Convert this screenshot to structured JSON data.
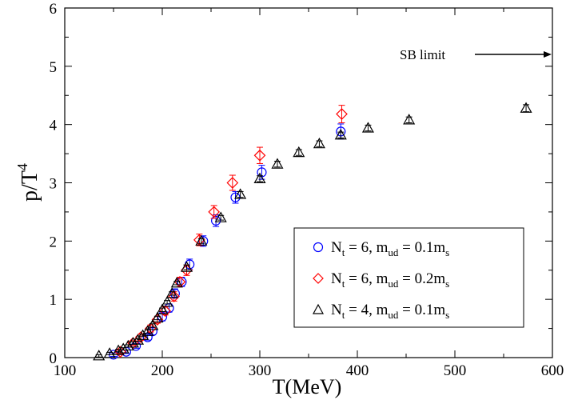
{
  "chart_data": {
    "type": "scatter",
    "xlabel": "T(MeV)",
    "ylabel_main": "p/T",
    "ylabel_sup": "4",
    "xlim": [
      100,
      600
    ],
    "ylim": [
      0,
      6
    ],
    "xticks": [
      100,
      200,
      300,
      400,
      500,
      600
    ],
    "yticks": [
      0,
      1,
      2,
      3,
      4,
      5,
      6
    ],
    "grid": false,
    "legend_position": "bottom-right",
    "annotation": {
      "text": "SB limit",
      "y": 5.2
    },
    "series": [
      {
        "marker": "circle",
        "color": "#0000ff",
        "legend": {
          "main": "N",
          "sub1": "t",
          "mid": " = 6, m",
          "sub2": "ud",
          "end": " = 0.1m",
          "sub3": "s"
        },
        "points": [
          {
            "x": 150,
            "y": 0.05,
            "err": 0.03
          },
          {
            "x": 163,
            "y": 0.1,
            "err": 0.03
          },
          {
            "x": 173,
            "y": 0.2,
            "err": 0.04
          },
          {
            "x": 185,
            "y": 0.35,
            "err": 0.05
          },
          {
            "x": 190,
            "y": 0.45,
            "err": 0.06
          },
          {
            "x": 200,
            "y": 0.7,
            "err": 0.07
          },
          {
            "x": 207,
            "y": 0.85,
            "err": 0.07
          },
          {
            "x": 213,
            "y": 1.1,
            "err": 0.08
          },
          {
            "x": 220,
            "y": 1.3,
            "err": 0.08
          },
          {
            "x": 228,
            "y": 1.6,
            "err": 0.09
          },
          {
            "x": 242,
            "y": 2.0,
            "err": 0.09
          },
          {
            "x": 255,
            "y": 2.35,
            "err": 0.1
          },
          {
            "x": 275,
            "y": 2.75,
            "err": 0.1
          },
          {
            "x": 302,
            "y": 3.18,
            "err": 0.12
          },
          {
            "x": 383,
            "y": 3.88,
            "err": 0.13
          }
        ]
      },
      {
        "marker": "diamond",
        "color": "#ff0000",
        "legend": {
          "main": "N",
          "sub1": "t",
          "mid": " = 6, m",
          "sub2": "ud",
          "end": " = 0.2m",
          "sub3": "s"
        },
        "points": [
          {
            "x": 157,
            "y": 0.1,
            "err": 0.03
          },
          {
            "x": 170,
            "y": 0.25,
            "err": 0.04
          },
          {
            "x": 178,
            "y": 0.35,
            "err": 0.05
          },
          {
            "x": 188,
            "y": 0.5,
            "err": 0.06
          },
          {
            "x": 195,
            "y": 0.65,
            "err": 0.06
          },
          {
            "x": 203,
            "y": 0.8,
            "err": 0.07
          },
          {
            "x": 212,
            "y": 1.05,
            "err": 0.08
          },
          {
            "x": 218,
            "y": 1.3,
            "err": 0.08
          },
          {
            "x": 225,
            "y": 1.5,
            "err": 0.09
          },
          {
            "x": 238,
            "y": 2.02,
            "err": 0.1
          },
          {
            "x": 253,
            "y": 2.5,
            "err": 0.11
          },
          {
            "x": 272,
            "y": 3.0,
            "err": 0.13
          },
          {
            "x": 300,
            "y": 3.47,
            "err": 0.14
          },
          {
            "x": 384,
            "y": 4.18,
            "err": 0.15
          }
        ]
      },
      {
        "marker": "triangle",
        "color": "#000000",
        "legend": {
          "main": "N",
          "sub1": "t",
          "mid": " = 4, m",
          "sub2": "ud",
          "end": " = 0.1m",
          "sub3": "s"
        },
        "points": [
          {
            "x": 135,
            "y": 0.03,
            "err": 0.02
          },
          {
            "x": 146,
            "y": 0.07,
            "err": 0.02
          },
          {
            "x": 155,
            "y": 0.12,
            "err": 0.02
          },
          {
            "x": 160,
            "y": 0.15,
            "err": 0.02
          },
          {
            "x": 165,
            "y": 0.2,
            "err": 0.02
          },
          {
            "x": 170,
            "y": 0.25,
            "err": 0.02
          },
          {
            "x": 175,
            "y": 0.3,
            "err": 0.02
          },
          {
            "x": 180,
            "y": 0.38,
            "err": 0.02
          },
          {
            "x": 185,
            "y": 0.45,
            "err": 0.03
          },
          {
            "x": 190,
            "y": 0.55,
            "err": 0.03
          },
          {
            "x": 195,
            "y": 0.68,
            "err": 0.03
          },
          {
            "x": 200,
            "y": 0.82,
            "err": 0.03
          },
          {
            "x": 205,
            "y": 0.95,
            "err": 0.03
          },
          {
            "x": 210,
            "y": 1.1,
            "err": 0.03
          },
          {
            "x": 215,
            "y": 1.28,
            "err": 0.03
          },
          {
            "x": 225,
            "y": 1.55,
            "err": 0.04
          },
          {
            "x": 240,
            "y": 2.0,
            "err": 0.04
          },
          {
            "x": 260,
            "y": 2.4,
            "err": 0.04
          },
          {
            "x": 280,
            "y": 2.8,
            "err": 0.05
          },
          {
            "x": 300,
            "y": 3.07,
            "err": 0.05
          },
          {
            "x": 318,
            "y": 3.32,
            "err": 0.05
          },
          {
            "x": 340,
            "y": 3.52,
            "err": 0.05
          },
          {
            "x": 361,
            "y": 3.67,
            "err": 0.05
          },
          {
            "x": 383,
            "y": 3.82,
            "err": 0.05
          },
          {
            "x": 411,
            "y": 3.94,
            "err": 0.05
          },
          {
            "x": 453,
            "y": 4.08,
            "err": 0.05
          },
          {
            "x": 573,
            "y": 4.28,
            "err": 0.06
          }
        ]
      }
    ]
  }
}
